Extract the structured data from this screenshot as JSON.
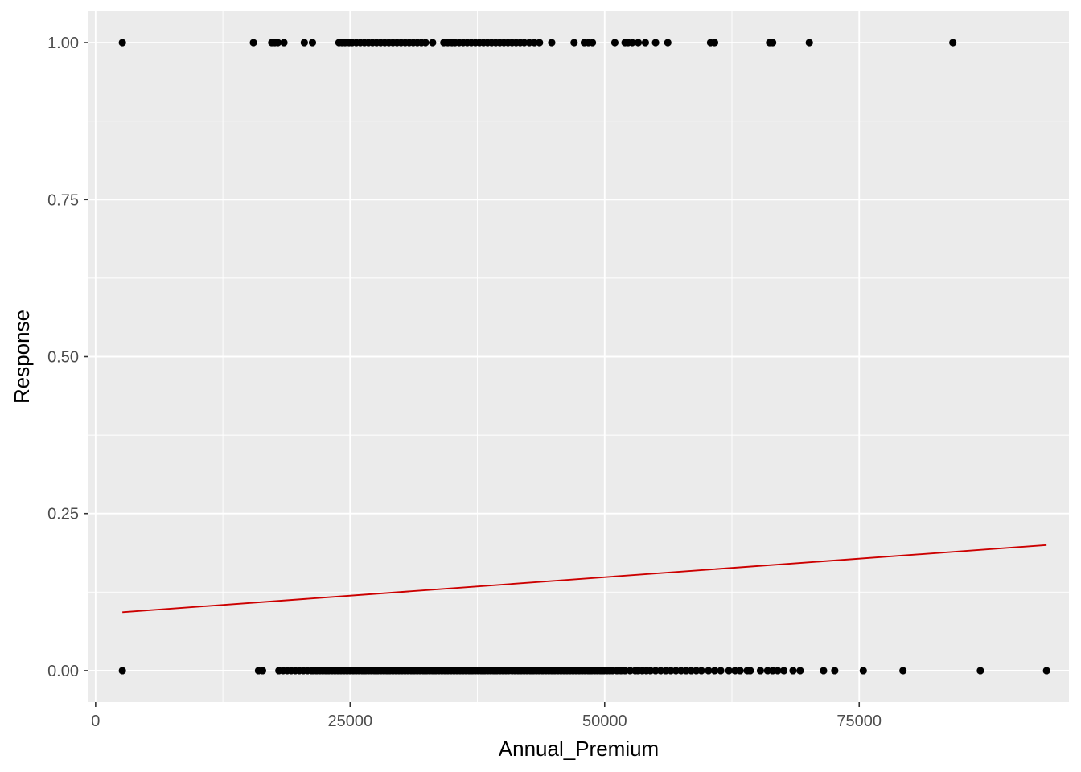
{
  "chart_data": {
    "type": "scatter",
    "title": "",
    "xlabel": "Annual_Premium",
    "ylabel": "Response",
    "xlim": [
      -700,
      95600
    ],
    "ylim": [
      -0.05,
      1.05
    ],
    "x_ticks": [
      0,
      25000,
      50000,
      75000
    ],
    "x_tick_labels": [
      "0",
      "25000",
      "50000",
      "75000"
    ],
    "y_ticks": [
      0,
      0.25,
      0.5,
      0.75,
      1.0
    ],
    "y_tick_labels": [
      "0.00",
      "0.25",
      "0.50",
      "0.75",
      "1.00"
    ],
    "grid": true,
    "colors": {
      "panel": "#EBEBEB",
      "grid": "#FFFFFF",
      "points": "#000000",
      "fit_line": "#CC0000",
      "tick": "#4D4D4D"
    },
    "series": [
      {
        "type": "scatter",
        "y": 1,
        "x": [
          2630,
          15500,
          17300,
          17600,
          17900,
          18500,
          20500,
          21300,
          23900,
          24200,
          24500,
          24900,
          25200,
          25600,
          26000,
          26400,
          26800,
          27200,
          27600,
          28000,
          28400,
          28800,
          29200,
          29600,
          30000,
          30400,
          30800,
          31200,
          31600,
          32000,
          32400,
          33100,
          34200,
          34600,
          35000,
          35300,
          35700,
          36100,
          36500,
          36900,
          37300,
          37700,
          38100,
          38500,
          38900,
          39300,
          39700,
          40100,
          40500,
          40900,
          41300,
          41700,
          42100,
          42600,
          43100,
          43600,
          44800,
          47000,
          48000,
          48400,
          48800,
          51000,
          52000,
          52300,
          52700,
          53300,
          54000,
          55000,
          56200,
          60400,
          60800,
          66200,
          66500,
          70100,
          84200
        ]
      },
      {
        "type": "scatter",
        "y": 0,
        "x": [
          2630,
          16000,
          16400,
          18000,
          18400,
          18800,
          19200,
          19600,
          20000,
          20400,
          20800,
          21200,
          21400,
          21700,
          22000,
          22300,
          22600,
          22900,
          23200,
          23500,
          23800,
          24100,
          24400,
          24700,
          25000,
          25300,
          25600,
          25900,
          26200,
          26500,
          26800,
          27100,
          27400,
          27700,
          28000,
          28300,
          28600,
          28900,
          29200,
          29500,
          29800,
          30100,
          30400,
          30700,
          31000,
          31300,
          31600,
          31900,
          32200,
          32500,
          32800,
          33100,
          33400,
          33700,
          34000,
          34300,
          34600,
          34900,
          35200,
          35500,
          35800,
          36100,
          36400,
          36700,
          37000,
          37300,
          37600,
          37900,
          38200,
          38500,
          38800,
          39100,
          39400,
          39700,
          40000,
          40300,
          40600,
          40900,
          41200,
          41500,
          41800,
          42100,
          42400,
          42700,
          43000,
          43300,
          43600,
          43900,
          44200,
          44500,
          44800,
          45100,
          45400,
          45700,
          46000,
          46300,
          46600,
          46900,
          47200,
          47500,
          47800,
          48100,
          48400,
          48700,
          49000,
          49300,
          49600,
          49900,
          50200,
          50500,
          50800,
          51200,
          51600,
          52000,
          52500,
          53000,
          53300,
          53700,
          54100,
          54500,
          55000,
          55500,
          56000,
          56500,
          57000,
          57500,
          58000,
          58500,
          59000,
          59500,
          60200,
          60800,
          61400,
          62200,
          62800,
          63300,
          64000,
          64300,
          65300,
          66000,
          66500,
          67000,
          67600,
          68500,
          69200,
          71500,
          72600,
          75400,
          79300,
          86900,
          93400
        ]
      },
      {
        "type": "line",
        "name": "fit",
        "x": [
          2630,
          93400
        ],
        "y": [
          0.093,
          0.2
        ]
      }
    ]
  }
}
